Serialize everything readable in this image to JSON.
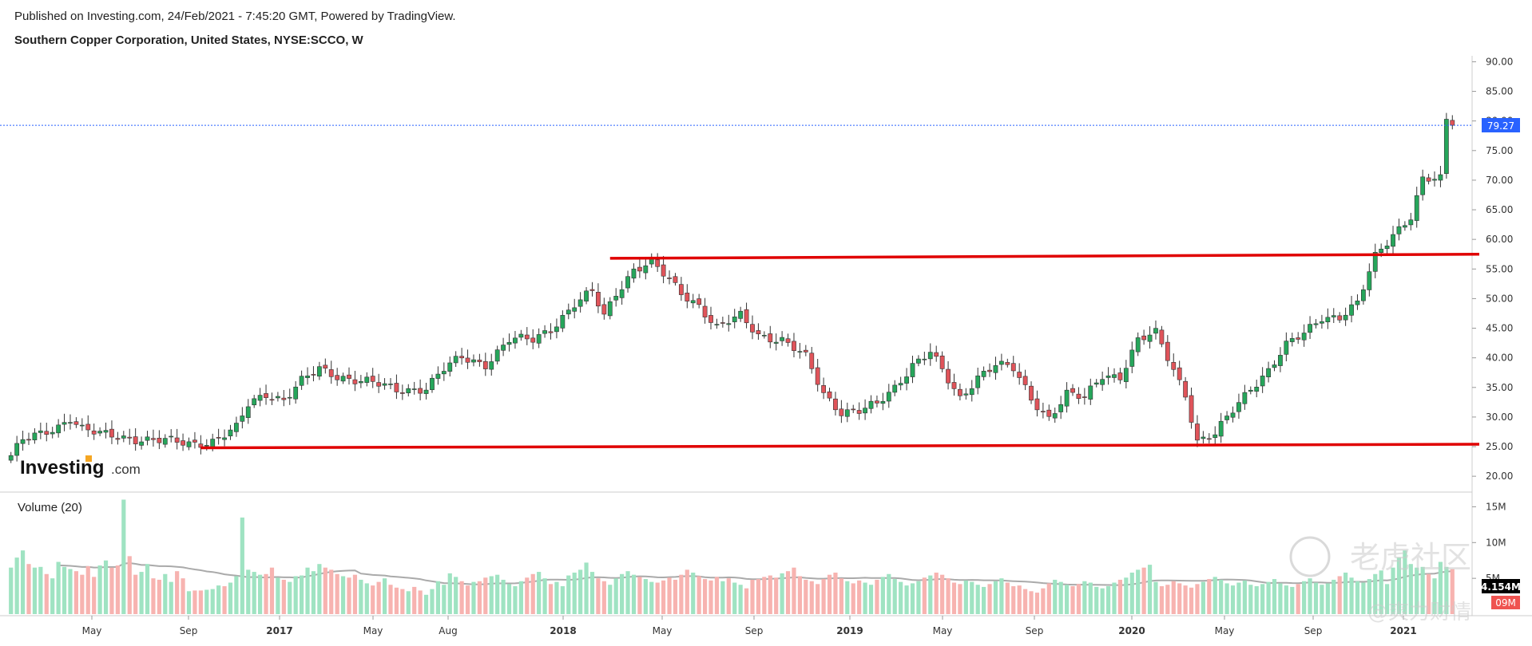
{
  "header": {
    "published": "Published on Investing.com, 24/Feb/2021 - 7:45:20 GMT, Powered by TradingView.",
    "title": "Southern Copper Corporation, United States, NYSE:SCCO, W"
  },
  "logo": {
    "brand": "Investing",
    "suffix": ".com"
  },
  "volume_panel": {
    "label": "Volume (20)"
  },
  "watermark": {
    "text1": "老虎社区",
    "text2": "@爽力财情"
  },
  "colors": {
    "up": "#26a65b",
    "down": "#e0545a",
    "vol_up": "#9fe3c2",
    "vol_down": "#f7b3b0",
    "ma": "#aaaaaa",
    "hline": "#e00000",
    "price_line": "#2962ff",
    "price_tag": "#2962ff",
    "vol_tag": "#000000",
    "vol_tag2": "#ef5350"
  },
  "chart_data": [
    {
      "type": "candlestick",
      "interval": "W",
      "price_ylim": [
        18,
        91
      ],
      "y_ticks": [
        "90.00",
        "85.00",
        "80.00",
        "75.00",
        "70.00",
        "65.00",
        "60.00",
        "55.00",
        "50.00",
        "45.00",
        "40.00",
        "35.00",
        "30.00",
        "25.00",
        "20.00"
      ],
      "x_ticks": [
        {
          "label": "May",
          "bold": false
        },
        {
          "label": "Sep",
          "bold": false
        },
        {
          "label": "2017",
          "bold": true
        },
        {
          "label": "May",
          "bold": false
        },
        {
          "label": "Aug",
          "bold": false
        },
        {
          "label": "2018",
          "bold": true
        },
        {
          "label": "May",
          "bold": false
        },
        {
          "label": "Sep",
          "bold": false
        },
        {
          "label": "2019",
          "bold": true
        },
        {
          "label": "May",
          "bold": false
        },
        {
          "label": "Sep",
          "bold": false
        },
        {
          "label": "2020",
          "bold": true
        },
        {
          "label": "May",
          "bold": false
        },
        {
          "label": "Sep",
          "bold": false
        },
        {
          "label": "2021",
          "bold": true
        }
      ],
      "last_price": 79.27,
      "last_price_label": "79.27",
      "price_keypoints": [
        [
          0,
          23.5
        ],
        [
          2,
          26
        ],
        [
          5,
          27
        ],
        [
          8,
          28.5
        ],
        [
          10,
          30
        ],
        [
          12,
          28
        ],
        [
          15,
          27
        ],
        [
          20,
          26.5
        ],
        [
          25,
          26
        ],
        [
          30,
          25.5
        ],
        [
          34,
          26
        ],
        [
          38,
          28
        ],
        [
          40,
          32
        ],
        [
          43,
          34
        ],
        [
          46,
          33
        ],
        [
          49,
          36
        ],
        [
          52,
          38
        ],
        [
          55,
          37
        ],
        [
          60,
          36
        ],
        [
          65,
          34.5
        ],
        [
          70,
          35
        ],
        [
          73,
          38
        ],
        [
          76,
          40
        ],
        [
          80,
          39
        ],
        [
          84,
          43
        ],
        [
          88,
          43
        ],
        [
          91,
          45
        ],
        [
          95,
          49
        ],
        [
          98,
          51
        ],
        [
          100,
          47
        ],
        [
          102,
          51
        ],
        [
          105,
          55
        ],
        [
          108,
          56
        ],
        [
          110,
          54
        ],
        [
          113,
          51
        ],
        [
          116,
          49
        ],
        [
          119,
          45
        ],
        [
          123,
          47
        ],
        [
          126,
          44
        ],
        [
          130,
          43
        ],
        [
          134,
          40
        ],
        [
          137,
          34
        ],
        [
          140,
          31
        ],
        [
          143,
          31
        ],
        [
          146,
          32
        ],
        [
          149,
          35
        ],
        [
          152,
          39
        ],
        [
          155,
          41
        ],
        [
          158,
          36
        ],
        [
          160,
          33
        ],
        [
          163,
          37
        ],
        [
          166,
          39
        ],
        [
          169,
          38
        ],
        [
          172,
          33
        ],
        [
          175,
          30
        ],
        [
          178,
          34
        ],
        [
          181,
          33
        ],
        [
          184,
          37
        ],
        [
          187,
          37
        ],
        [
          190,
          43
        ],
        [
          193,
          44
        ],
        [
          196,
          38
        ],
        [
          198,
          34
        ],
        [
          200,
          26
        ],
        [
          203,
          27
        ],
        [
          206,
          31
        ],
        [
          209,
          35
        ],
        [
          212,
          38
        ],
        [
          215,
          42
        ],
        [
          218,
          44
        ],
        [
          221,
          47
        ],
        [
          224,
          47
        ],
        [
          227,
          49
        ],
        [
          230,
          57
        ],
        [
          233,
          61
        ],
        [
          236,
          64
        ],
        [
          238,
          70
        ],
        [
          241,
          70
        ],
        [
          242,
          80
        ],
        [
          243,
          79.27
        ]
      ],
      "hlines": [
        {
          "x1": 101,
          "y1": 56.8,
          "x2": 250,
          "y2": 57.5
        },
        {
          "x1": 32,
          "y1": 24.8,
          "x2": 250,
          "y2": 25.4
        }
      ]
    },
    {
      "type": "bar",
      "name": "Volume (20)",
      "volume_ylim": [
        0,
        16.5
      ],
      "y_ticks": [
        "15M",
        "10M",
        "5M"
      ],
      "last_volume_label": "4.154M",
      "second_label": "09M",
      "volume_pattern": [
        6.5,
        7.9,
        8.9,
        7.0,
        6.5,
        6.6,
        5.6,
        5.0,
        7.3,
        6.6,
        6.3,
        6.0,
        5.5,
        6.7,
        5.2,
        6.8,
        7.5,
        6.5,
        6.8,
        16.0,
        8.1,
        5.5,
        5.9,
        7.0,
        5.0,
        4.8,
        5.6,
        4.5,
        6.0,
        5.0,
        3.2,
        3.3,
        3.3,
        3.4,
        3.5,
        4.0,
        3.9,
        4.4,
        5.3,
        13.5,
        6.2,
        5.9,
        5.5,
        5.6,
        6.5,
        5.1,
        4.8,
        4.5,
        5.3,
        5.4,
        6.5,
        6.0,
        7.0,
        6.5,
        6.2,
        5.6,
        5.3,
        5.1,
        5.5,
        4.8,
        4.3,
        4.0,
        4.5,
        5.0,
        4.1,
        3.7,
        3.5,
        3.2,
        3.8,
        3.3,
        2.7,
        3.5,
        4.6,
        4.1,
        5.7,
        5.2,
        4.6,
        4.0,
        4.5,
        4.6,
        5.1,
        5.3,
        5.5,
        4.8,
        4.2,
        3.9,
        4.6,
        5.1,
        5.6,
        5.9,
        5.0,
        4.2,
        4.5,
        3.9,
        5.4,
        5.8,
        6.2,
        7.2,
        5.9,
        5.0,
        4.6,
        4.1,
        5.0,
        5.6,
        6.0,
        5.5,
        5.2,
        4.9,
        4.5,
        4.4,
        4.7,
        5.1,
        4.8,
        5.5,
        6.2,
        5.8,
        5.3,
        4.9,
        4.7,
        5.2,
        4.6,
        5.0,
        4.4,
        4.1,
        3.6,
        4.8,
        4.9,
        5.2,
        5.4,
        5.1,
        5.7,
        6.0,
        6.5,
        5.3,
        4.8,
        4.6,
        4.2,
        4.9,
        5.5,
        5.8,
        5.0,
        4.6,
        4.3,
        4.7,
        4.4,
        4.1,
        4.8,
        5.2,
        5.6,
        4.9,
        4.5,
        4.0,
        4.3,
        4.6,
        5.1,
        5.4,
        5.8,
        5.5,
        5.0,
        4.4,
        4.2,
        4.7,
        4.5,
        4.1,
        3.8,
        4.2,
        4.6,
        5.0,
        4.4,
        3.9,
        4.0,
        3.5,
        3.2,
        3.0,
        3.6,
        4.3,
        4.8,
        4.5,
        4.1,
        3.9,
        4.2,
        4.6,
        4.4,
        3.8,
        3.6,
        3.9,
        4.4,
        4.8,
        5.1,
        5.8,
        6.2,
        6.5,
        6.9,
        4.5,
        3.9,
        4.1,
        4.6,
        4.3,
        4.0,
        3.7,
        4.2,
        4.5,
        4.9,
        5.2,
        4.8,
        4.3,
        4.0,
        4.4,
        4.7,
        4.1,
        3.9,
        4.2,
        4.5,
        4.9,
        4.3,
        4.0,
        3.8,
        4.2,
        4.6,
        5.0,
        4.4,
        4.1,
        4.3,
        4.8,
        5.3,
        5.8,
        5.1,
        4.6,
        4.4,
        4.9,
        5.6,
        6.1,
        4.2
      ]
    }
  ]
}
